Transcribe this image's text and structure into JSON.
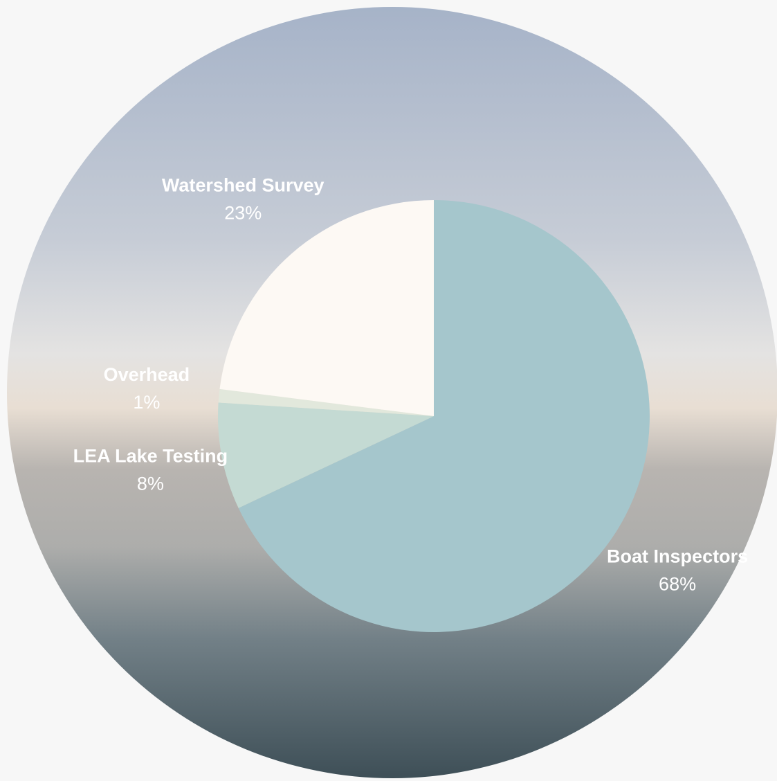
{
  "chart_data": {
    "type": "pie",
    "categories": [
      "Boat Inspectors",
      "LEA Lake Testing",
      "Overhead",
      "Watershed Survey"
    ],
    "values": [
      68,
      8,
      1,
      23
    ],
    "value_labels": [
      "68%",
      "8%",
      "1%",
      "23%"
    ],
    "colors": [
      "#a5c6cc",
      "#c4dad3",
      "#e2e8dc",
      "#fdf9f4"
    ]
  }
}
